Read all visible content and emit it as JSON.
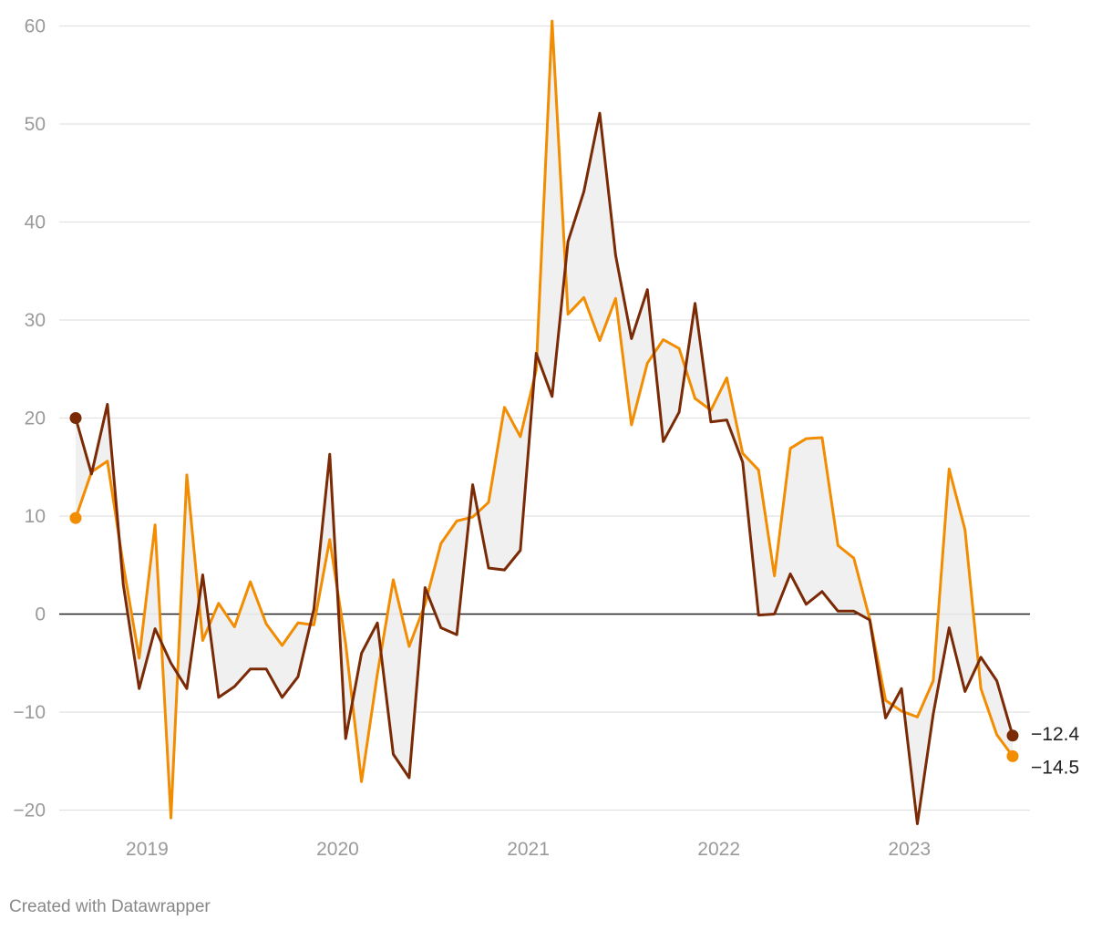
{
  "chart_data": {
    "type": "line",
    "title": "",
    "xlabel": "",
    "ylabel": "",
    "ylim": [
      -21,
      62
    ],
    "y_ticks": [
      -20,
      -10,
      0,
      10,
      20,
      30,
      40,
      50,
      60
    ],
    "y_tick_labels": [
      "−20",
      "−10",
      "0",
      "10",
      "20",
      "30",
      "40",
      "50",
      "60"
    ],
    "x_start_index": 0,
    "x_ticks": [
      {
        "label": "2019",
        "index": 4.5
      },
      {
        "label": "2020",
        "index": 16.5
      },
      {
        "label": "2021",
        "index": 28.5
      },
      {
        "label": "2022",
        "index": 40.5
      },
      {
        "label": "2023",
        "index": 52.5
      }
    ],
    "grid": true,
    "zero_line": true,
    "shaded_between_series": true,
    "series": [
      {
        "name": "",
        "color": "#f28c00",
        "end_label": "−14.5",
        "values": [
          9.8,
          14.5,
          15.6,
          5.0,
          -4.5,
          9.1,
          -20.8,
          14.2,
          -2.7,
          1.1,
          -1.3,
          3.3,
          -1.0,
          -3.2,
          -0.9,
          -1.1,
          7.6,
          -3.0,
          -17.1,
          -6.1,
          3.5,
          -3.3,
          1.0,
          7.2,
          9.5,
          9.9,
          11.4,
          21.1,
          18.1,
          24.9,
          60.5,
          30.6,
          32.3,
          27.9,
          32.2,
          19.3,
          25.6,
          28.0,
          27.1,
          22.0,
          20.8,
          24.1,
          16.4,
          14.7,
          3.9,
          16.9,
          17.9,
          18.0,
          7.0,
          5.7,
          -0.5,
          -8.8,
          -9.9,
          -10.5,
          -6.8,
          14.8,
          8.6,
          -7.6,
          -12.3,
          -14.5
        ]
      },
      {
        "name": "",
        "color": "#7a2a05",
        "end_label": "−12.4",
        "values": [
          20.0,
          14.3,
          21.4,
          3.0,
          -7.6,
          -1.5,
          -5.0,
          -7.6,
          4.0,
          -8.5,
          -7.4,
          -5.6,
          -5.6,
          -8.5,
          -6.4,
          0.5,
          16.3,
          -12.7,
          -4.0,
          -0.9,
          -14.3,
          -16.7,
          2.7,
          -1.4,
          -2.1,
          13.2,
          4.7,
          4.5,
          6.5,
          26.6,
          22.2,
          38.0,
          43.1,
          51.1,
          36.6,
          28.1,
          33.1,
          17.6,
          20.6,
          31.7,
          19.6,
          19.8,
          15.5,
          -0.1,
          0.0,
          4.1,
          1.0,
          2.3,
          0.3,
          0.3,
          -0.6,
          -10.6,
          -7.6,
          -21.4,
          -10.2,
          -1.4,
          -7.9,
          -4.4,
          -6.8,
          -12.4
        ]
      }
    ]
  },
  "footer": {
    "credit": "Created with Datawrapper"
  }
}
